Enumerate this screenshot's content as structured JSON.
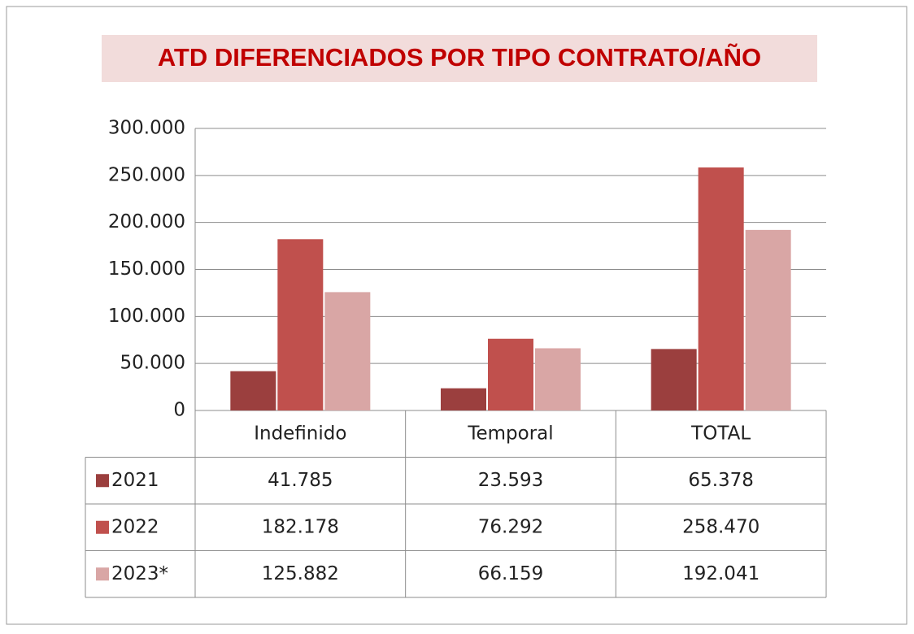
{
  "chart_data": {
    "type": "bar",
    "title": "ATD DIFERENCIADOS POR  TIPO  CONTRATO/AÑO",
    "categories": [
      "Indefinido",
      "Temporal",
      "TOTAL"
    ],
    "series": [
      {
        "name": "2021",
        "color": "#9b3f3e",
        "values": [
          41785,
          23593,
          65378
        ],
        "value_labels": [
          "41.785",
          "23.593",
          "65.378"
        ]
      },
      {
        "name": "2022",
        "color": "#c0504d",
        "values": [
          182178,
          76292,
          258470
        ],
        "value_labels": [
          "182.178",
          "76.292",
          "258.470"
        ]
      },
      {
        "name": "2023*",
        "color": "#d9a6a5",
        "values": [
          125882,
          66159,
          192041
        ],
        "value_labels": [
          "125.882",
          "66.159",
          "192.041"
        ]
      }
    ],
    "ylim": [
      0,
      300000
    ],
    "yticks": [
      0,
      {
        "value": 50000,
        "label": "50.000"
      },
      {
        "value": 100000,
        "label": "100.000"
      },
      {
        "value": 150000,
        "label": "150.000"
      },
      {
        "value": 200000,
        "label": "200.000"
      },
      {
        "value": 250000,
        "label": "250.000"
      },
      {
        "value": 300000,
        "label": "300.000"
      }
    ],
    "grid": true
  }
}
